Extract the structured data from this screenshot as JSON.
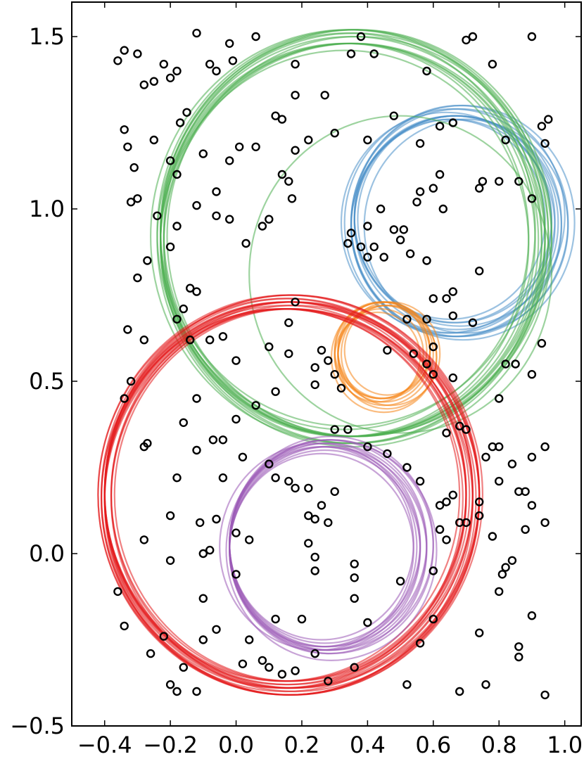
{
  "chart_data": {
    "type": "scatter",
    "title": "",
    "xlabel": "",
    "ylabel": "",
    "xlim": [
      -0.5,
      1.05
    ],
    "ylim": [
      -0.5,
      1.6
    ],
    "grid": false,
    "x_ticks": [
      "−0.4",
      "−0.2",
      "0.0",
      "0.2",
      "0.4",
      "0.6",
      "0.8",
      "1.0"
    ],
    "x_tick_values": [
      -0.4,
      -0.2,
      0.0,
      0.2,
      0.4,
      0.6,
      0.8,
      1.0
    ],
    "y_ticks": [
      "−0.5",
      "0.0",
      "0.5",
      "1.0",
      "1.5"
    ],
    "y_tick_values": [
      -0.5,
      0.0,
      0.5,
      1.0,
      1.5
    ],
    "points_style": {
      "marker": "open-circle",
      "color": "#000000"
    },
    "points": [
      [
        -0.36,
        1.43
      ],
      [
        -0.34,
        1.46
      ],
      [
        -0.3,
        1.45
      ],
      [
        -0.28,
        1.36
      ],
      [
        -0.25,
        1.37
      ],
      [
        -0.22,
        1.42
      ],
      [
        -0.2,
        1.38
      ],
      [
        -0.18,
        1.4
      ],
      [
        -0.12,
        1.51
      ],
      [
        -0.08,
        1.42
      ],
      [
        -0.06,
        1.4
      ],
      [
        -0.02,
        1.48
      ],
      [
        -0.01,
        1.43
      ],
      [
        0.06,
        1.5
      ],
      [
        0.18,
        1.42
      ],
      [
        0.27,
        1.33
      ],
      [
        0.35,
        1.45
      ],
      [
        0.38,
        1.5
      ],
      [
        0.42,
        1.45
      ],
      [
        0.58,
        1.4
      ],
      [
        0.7,
        1.49
      ],
      [
        0.72,
        1.5
      ],
      [
        0.78,
        1.42
      ],
      [
        0.9,
        1.5
      ],
      [
        -0.34,
        1.23
      ],
      [
        -0.33,
        1.18
      ],
      [
        -0.31,
        1.12
      ],
      [
        -0.32,
        1.02
      ],
      [
        -0.3,
        1.03
      ],
      [
        -0.25,
        1.2
      ],
      [
        -0.17,
        1.25
      ],
      [
        -0.15,
        1.28
      ],
      [
        -0.2,
        1.14
      ],
      [
        -0.18,
        1.1
      ],
      [
        -0.1,
        1.16
      ],
      [
        -0.06,
        1.05
      ],
      [
        -0.06,
        0.98
      ],
      [
        -0.02,
        1.14
      ],
      [
        0.01,
        1.18
      ],
      [
        0.06,
        1.18
      ],
      [
        0.12,
        1.27
      ],
      [
        0.14,
        1.26
      ],
      [
        0.14,
        1.1
      ],
      [
        0.16,
        1.08
      ],
      [
        0.18,
        1.17
      ],
      [
        0.18,
        1.33
      ],
      [
        0.22,
        1.2
      ],
      [
        0.3,
        1.22
      ],
      [
        0.4,
        1.2
      ],
      [
        0.48,
        1.27
      ],
      [
        0.56,
        1.19
      ],
      [
        0.62,
        1.24
      ],
      [
        0.66,
        1.25
      ],
      [
        0.75,
        1.08
      ],
      [
        0.74,
        1.06
      ],
      [
        0.8,
        1.08
      ],
      [
        0.82,
        1.2
      ],
      [
        0.86,
        1.08
      ],
      [
        0.9,
        1.03
      ],
      [
        0.93,
        1.24
      ],
      [
        0.94,
        1.19
      ],
      [
        0.95,
        1.26
      ],
      [
        0.62,
        1.1
      ],
      [
        0.6,
        1.06
      ],
      [
        0.63,
        1.0
      ],
      [
        0.55,
        1.02
      ],
      [
        0.56,
        1.05
      ],
      [
        0.44,
        1.0
      ],
      [
        0.4,
        0.95
      ],
      [
        0.38,
        0.89
      ],
      [
        0.4,
        0.86
      ],
      [
        0.48,
        0.94
      ],
      [
        0.5,
        0.91
      ],
      [
        0.51,
        0.94
      ],
      [
        0.53,
        0.87
      ],
      [
        0.45,
        0.86
      ],
      [
        0.42,
        0.89
      ],
      [
        0.35,
        0.93
      ],
      [
        0.34,
        0.9
      ],
      [
        0.17,
        1.03
      ],
      [
        0.08,
        0.95
      ],
      [
        0.1,
        0.97
      ],
      [
        0.03,
        0.9
      ],
      [
        -0.02,
        0.97
      ],
      [
        -0.12,
        1.01
      ],
      [
        -0.18,
        0.95
      ],
      [
        -0.24,
        0.98
      ],
      [
        -0.3,
        0.8
      ],
      [
        -0.27,
        0.85
      ],
      [
        -0.2,
        0.89
      ],
      [
        -0.14,
        0.77
      ],
      [
        -0.12,
        0.76
      ],
      [
        -0.18,
        0.68
      ],
      [
        -0.16,
        0.71
      ],
      [
        -0.33,
        0.65
      ],
      [
        -0.32,
        0.5
      ],
      [
        -0.34,
        0.45
      ],
      [
        -0.28,
        0.62
      ],
      [
        -0.14,
        0.62
      ],
      [
        -0.08,
        0.62
      ],
      [
        -0.04,
        0.63
      ],
      [
        0.0,
        0.56
      ],
      [
        0.1,
        0.6
      ],
      [
        0.16,
        0.58
      ],
      [
        0.16,
        0.67
      ],
      [
        0.18,
        0.73
      ],
      [
        0.26,
        0.59
      ],
      [
        0.3,
        0.52
      ],
      [
        0.32,
        0.48
      ],
      [
        0.28,
        0.56
      ],
      [
        0.24,
        0.54
      ],
      [
        0.24,
        0.49
      ],
      [
        0.12,
        0.47
      ],
      [
        0.06,
        0.43
      ],
      [
        0.0,
        0.39
      ],
      [
        -0.04,
        0.33
      ],
      [
        -0.07,
        0.33
      ],
      [
        -0.12,
        0.45
      ],
      [
        -0.16,
        0.38
      ],
      [
        -0.28,
        0.31
      ],
      [
        -0.27,
        0.32
      ],
      [
        -0.18,
        0.22
      ],
      [
        -0.12,
        0.3
      ],
      [
        -0.11,
        0.09
      ],
      [
        -0.2,
        0.11
      ],
      [
        -0.28,
        0.04
      ],
      [
        -0.36,
        -0.11
      ],
      [
        -0.34,
        -0.21
      ],
      [
        -0.26,
        -0.29
      ],
      [
        -0.22,
        -0.24
      ],
      [
        -0.2,
        -0.38
      ],
      [
        -0.18,
        -0.4
      ],
      [
        -0.16,
        -0.33
      ],
      [
        -0.12,
        -0.4
      ],
      [
        -0.1,
        -0.25
      ],
      [
        -0.06,
        -0.22
      ],
      [
        -0.1,
        -0.13
      ],
      [
        0.02,
        -0.32
      ],
      [
        0.04,
        -0.25
      ],
      [
        0.08,
        -0.31
      ],
      [
        0.1,
        -0.33
      ],
      [
        0.12,
        -0.19
      ],
      [
        0.14,
        -0.35
      ],
      [
        0.18,
        -0.34
      ],
      [
        0.2,
        -0.19
      ],
      [
        0.24,
        -0.29
      ],
      [
        0.28,
        -0.37
      ],
      [
        0.36,
        -0.33
      ],
      [
        0.4,
        -0.2
      ],
      [
        0.52,
        -0.38
      ],
      [
        0.56,
        -0.26
      ],
      [
        0.6,
        -0.19
      ],
      [
        0.68,
        -0.4
      ],
      [
        0.74,
        -0.23
      ],
      [
        0.76,
        -0.38
      ],
      [
        0.86,
        -0.3
      ],
      [
        0.86,
        -0.27
      ],
      [
        0.9,
        -0.18
      ],
      [
        0.94,
        -0.41
      ],
      [
        0.8,
        -0.11
      ],
      [
        0.81,
        -0.06
      ],
      [
        0.82,
        -0.04
      ],
      [
        0.84,
        -0.02
      ],
      [
        0.88,
        0.07
      ],
      [
        0.94,
        0.09
      ],
      [
        0.9,
        0.14
      ],
      [
        0.88,
        0.18
      ],
      [
        0.86,
        0.18
      ],
      [
        0.9,
        0.28
      ],
      [
        0.94,
        0.31
      ],
      [
        0.84,
        0.26
      ],
      [
        0.8,
        0.21
      ],
      [
        0.8,
        0.31
      ],
      [
        0.78,
        0.31
      ],
      [
        0.76,
        0.28
      ],
      [
        0.8,
        0.45
      ],
      [
        0.82,
        0.55
      ],
      [
        0.85,
        0.55
      ],
      [
        0.9,
        0.52
      ],
      [
        0.93,
        0.61
      ],
      [
        0.74,
        0.15
      ],
      [
        0.68,
        0.09
      ],
      [
        0.64,
        0.15
      ],
      [
        0.62,
        0.14
      ],
      [
        0.64,
        0.04
      ],
      [
        0.7,
        0.09
      ],
      [
        0.74,
        0.11
      ],
      [
        0.78,
        0.05
      ],
      [
        0.6,
        -0.05
      ],
      [
        0.5,
        -0.08
      ],
      [
        0.36,
        -0.03
      ],
      [
        0.36,
        -0.07
      ],
      [
        0.36,
        -0.13
      ],
      [
        0.24,
        -0.05
      ],
      [
        0.24,
        -0.01
      ],
      [
        0.22,
        0.03
      ],
      [
        0.24,
        0.1
      ],
      [
        0.22,
        0.11
      ],
      [
        0.28,
        0.09
      ],
      [
        0.26,
        0.14
      ],
      [
        0.3,
        0.18
      ],
      [
        0.22,
        0.19
      ],
      [
        0.18,
        0.19
      ],
      [
        0.16,
        0.21
      ],
      [
        0.12,
        0.22
      ],
      [
        0.1,
        0.26
      ],
      [
        0.02,
        0.28
      ],
      [
        -0.04,
        0.22
      ],
      [
        -0.06,
        0.1
      ],
      [
        -0.08,
        0.01
      ],
      [
        -0.1,
        0.0
      ],
      [
        -0.2,
        -0.02
      ],
      [
        0.0,
        0.06
      ],
      [
        0.04,
        0.04
      ],
      [
        0.0,
        -0.06
      ],
      [
        0.3,
        0.36
      ],
      [
        0.34,
        0.36
      ],
      [
        0.4,
        0.31
      ],
      [
        0.46,
        0.29
      ],
      [
        0.52,
        0.25
      ],
      [
        0.56,
        0.21
      ],
      [
        0.62,
        0.07
      ],
      [
        0.66,
        0.17
      ],
      [
        0.68,
        0.37
      ],
      [
        0.54,
        0.58
      ],
      [
        0.46,
        0.59
      ],
      [
        0.52,
        0.68
      ],
      [
        0.58,
        0.68
      ],
      [
        0.6,
        0.74
      ],
      [
        0.64,
        0.74
      ],
      [
        0.66,
        0.69
      ],
      [
        0.72,
        0.67
      ],
      [
        0.66,
        0.51
      ],
      [
        0.6,
        0.52
      ],
      [
        0.58,
        0.55
      ],
      [
        0.6,
        0.6
      ],
      [
        0.64,
        0.35
      ],
      [
        0.7,
        0.36
      ],
      [
        0.74,
        0.82
      ],
      [
        0.58,
        0.85
      ],
      [
        0.66,
        0.76
      ]
    ],
    "series": [
      {
        "color": "#4a90c8",
        "centers": [
          [
            0.67,
            0.96
          ],
          [
            0.66,
            0.97
          ],
          [
            0.68,
            0.96
          ],
          [
            0.67,
            0.95
          ],
          [
            0.65,
            0.97
          ],
          [
            0.69,
            0.96
          ],
          [
            0.66,
            0.95
          ],
          [
            0.68,
            0.98
          ],
          [
            0.67,
            0.97
          ],
          [
            0.66,
            0.96
          ],
          [
            0.7,
            0.95
          ],
          [
            0.64,
            0.96
          ]
        ],
        "radii": [
          0.31,
          0.3,
          0.33,
          0.32,
          0.29,
          0.34,
          0.31,
          0.32,
          0.3,
          0.33,
          0.31,
          0.32
        ]
      },
      {
        "color": "#f58518",
        "centers": [
          [
            0.45,
            0.58
          ],
          [
            0.44,
            0.58
          ],
          [
            0.46,
            0.57
          ],
          [
            0.45,
            0.59
          ],
          [
            0.43,
            0.57
          ],
          [
            0.47,
            0.58
          ],
          [
            0.45,
            0.57
          ],
          [
            0.44,
            0.59
          ],
          [
            0.46,
            0.59
          ],
          [
            0.45,
            0.58
          ]
        ],
        "radii": [
          0.14,
          0.13,
          0.15,
          0.14,
          0.13,
          0.15,
          0.16,
          0.14,
          0.13,
          0.15
        ]
      },
      {
        "color": "#4caf50",
        "centers": [
          [
            0.35,
            0.92
          ],
          [
            0.34,
            0.91
          ],
          [
            0.36,
            0.93
          ],
          [
            0.35,
            0.9
          ],
          [
            0.33,
            0.92
          ],
          [
            0.36,
            0.91
          ],
          [
            0.34,
            0.94
          ],
          [
            0.37,
            0.92
          ],
          [
            0.35,
            0.93
          ],
          [
            0.33,
            0.9
          ],
          [
            0.36,
            0.9
          ],
          [
            0.34,
            0.92
          ],
          [
            0.35,
            0.91
          ],
          [
            0.37,
            0.93
          ],
          [
            0.5,
            0.81
          ]
        ],
        "radii": [
          0.58,
          0.57,
          0.59,
          0.58,
          0.56,
          0.6,
          0.57,
          0.58,
          0.59,
          0.56,
          0.58,
          0.6,
          0.57,
          0.59,
          0.46
        ]
      },
      {
        "color": "#e41a1c",
        "centers": [
          [
            0.16,
            0.17
          ],
          [
            0.15,
            0.17
          ],
          [
            0.17,
            0.16
          ],
          [
            0.16,
            0.18
          ],
          [
            0.14,
            0.17
          ],
          [
            0.17,
            0.17
          ],
          [
            0.15,
            0.16
          ],
          [
            0.16,
            0.16
          ],
          [
            0.18,
            0.17
          ],
          [
            0.16,
            0.17
          ],
          [
            0.15,
            0.18
          ],
          [
            0.17,
            0.18
          ],
          [
            0.16,
            0.15
          ],
          [
            0.14,
            0.16
          ],
          [
            0.18,
            0.16
          ],
          [
            0.15,
            0.17
          ],
          [
            0.16,
            0.17
          ],
          [
            0.17,
            0.17
          ]
        ],
        "radii": [
          0.56,
          0.55,
          0.57,
          0.56,
          0.54,
          0.58,
          0.55,
          0.57,
          0.56,
          0.54,
          0.55,
          0.57,
          0.56,
          0.55,
          0.56,
          0.57,
          0.58,
          0.54
        ]
      },
      {
        "color": "#9b59b6",
        "centers": [
          [
            0.28,
            0.02
          ],
          [
            0.27,
            0.02
          ],
          [
            0.29,
            0.03
          ],
          [
            0.28,
            0.01
          ],
          [
            0.26,
            0.03
          ],
          [
            0.29,
            0.02
          ],
          [
            0.27,
            0.01
          ],
          [
            0.28,
            0.03
          ],
          [
            0.26,
            0.01
          ],
          [
            0.29,
            0.01
          ],
          [
            0.25,
            0.02
          ],
          [
            0.27,
            0.03
          ]
        ],
        "radii": [
          0.3,
          0.29,
          0.31,
          0.3,
          0.28,
          0.31,
          0.29,
          0.3,
          0.28,
          0.32,
          0.3,
          0.29
        ]
      }
    ]
  }
}
